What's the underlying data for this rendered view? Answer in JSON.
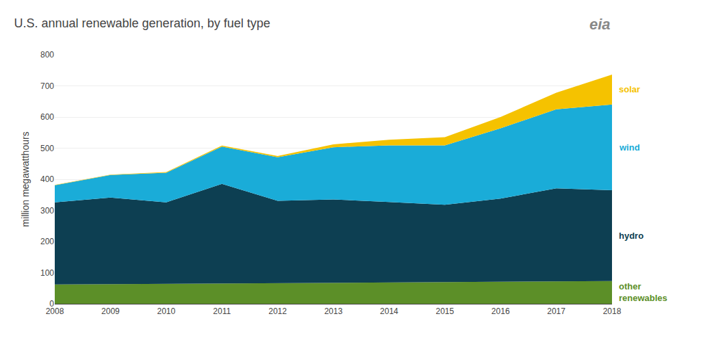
{
  "chart_data": {
    "type": "area",
    "stacked": true,
    "title": "U.S. annual renewable generation, by fuel type",
    "ylabel": "million megawatthours",
    "x": [
      2008,
      2009,
      2010,
      2011,
      2012,
      2013,
      2014,
      2015,
      2016,
      2017,
      2018
    ],
    "series": [
      {
        "name": "other\nrenewables",
        "color": "#5c8f28",
        "values": [
          62,
          63,
          64,
          65,
          66,
          67,
          68,
          69,
          70,
          71,
          73
        ]
      },
      {
        "name": "hydro",
        "color": "#0d3f52",
        "values": [
          264,
          278,
          262,
          320,
          265,
          268,
          259,
          249,
          268,
          300,
          292
        ]
      },
      {
        "name": "wind",
        "color": "#1aacd8",
        "values": [
          55,
          73,
          95,
          120,
          140,
          168,
          182,
          191,
          226,
          254,
          275
        ]
      },
      {
        "name": "solar",
        "color": "#f5c200",
        "values": [
          1,
          1,
          2,
          3,
          4,
          9,
          18,
          26,
          36,
          53,
          96
        ]
      }
    ],
    "annotations": [
      "eia"
    ],
    "xlim": [
      2008,
      2018
    ],
    "xticks": [
      2008,
      2009,
      2010,
      2011,
      2012,
      2013,
      2014,
      2015,
      2016,
      2017,
      2018
    ],
    "ylim": [
      0,
      800
    ],
    "yticks": [
      0,
      100,
      200,
      300,
      400,
      500,
      600,
      700,
      800
    ],
    "grid": true,
    "legend": false
  }
}
